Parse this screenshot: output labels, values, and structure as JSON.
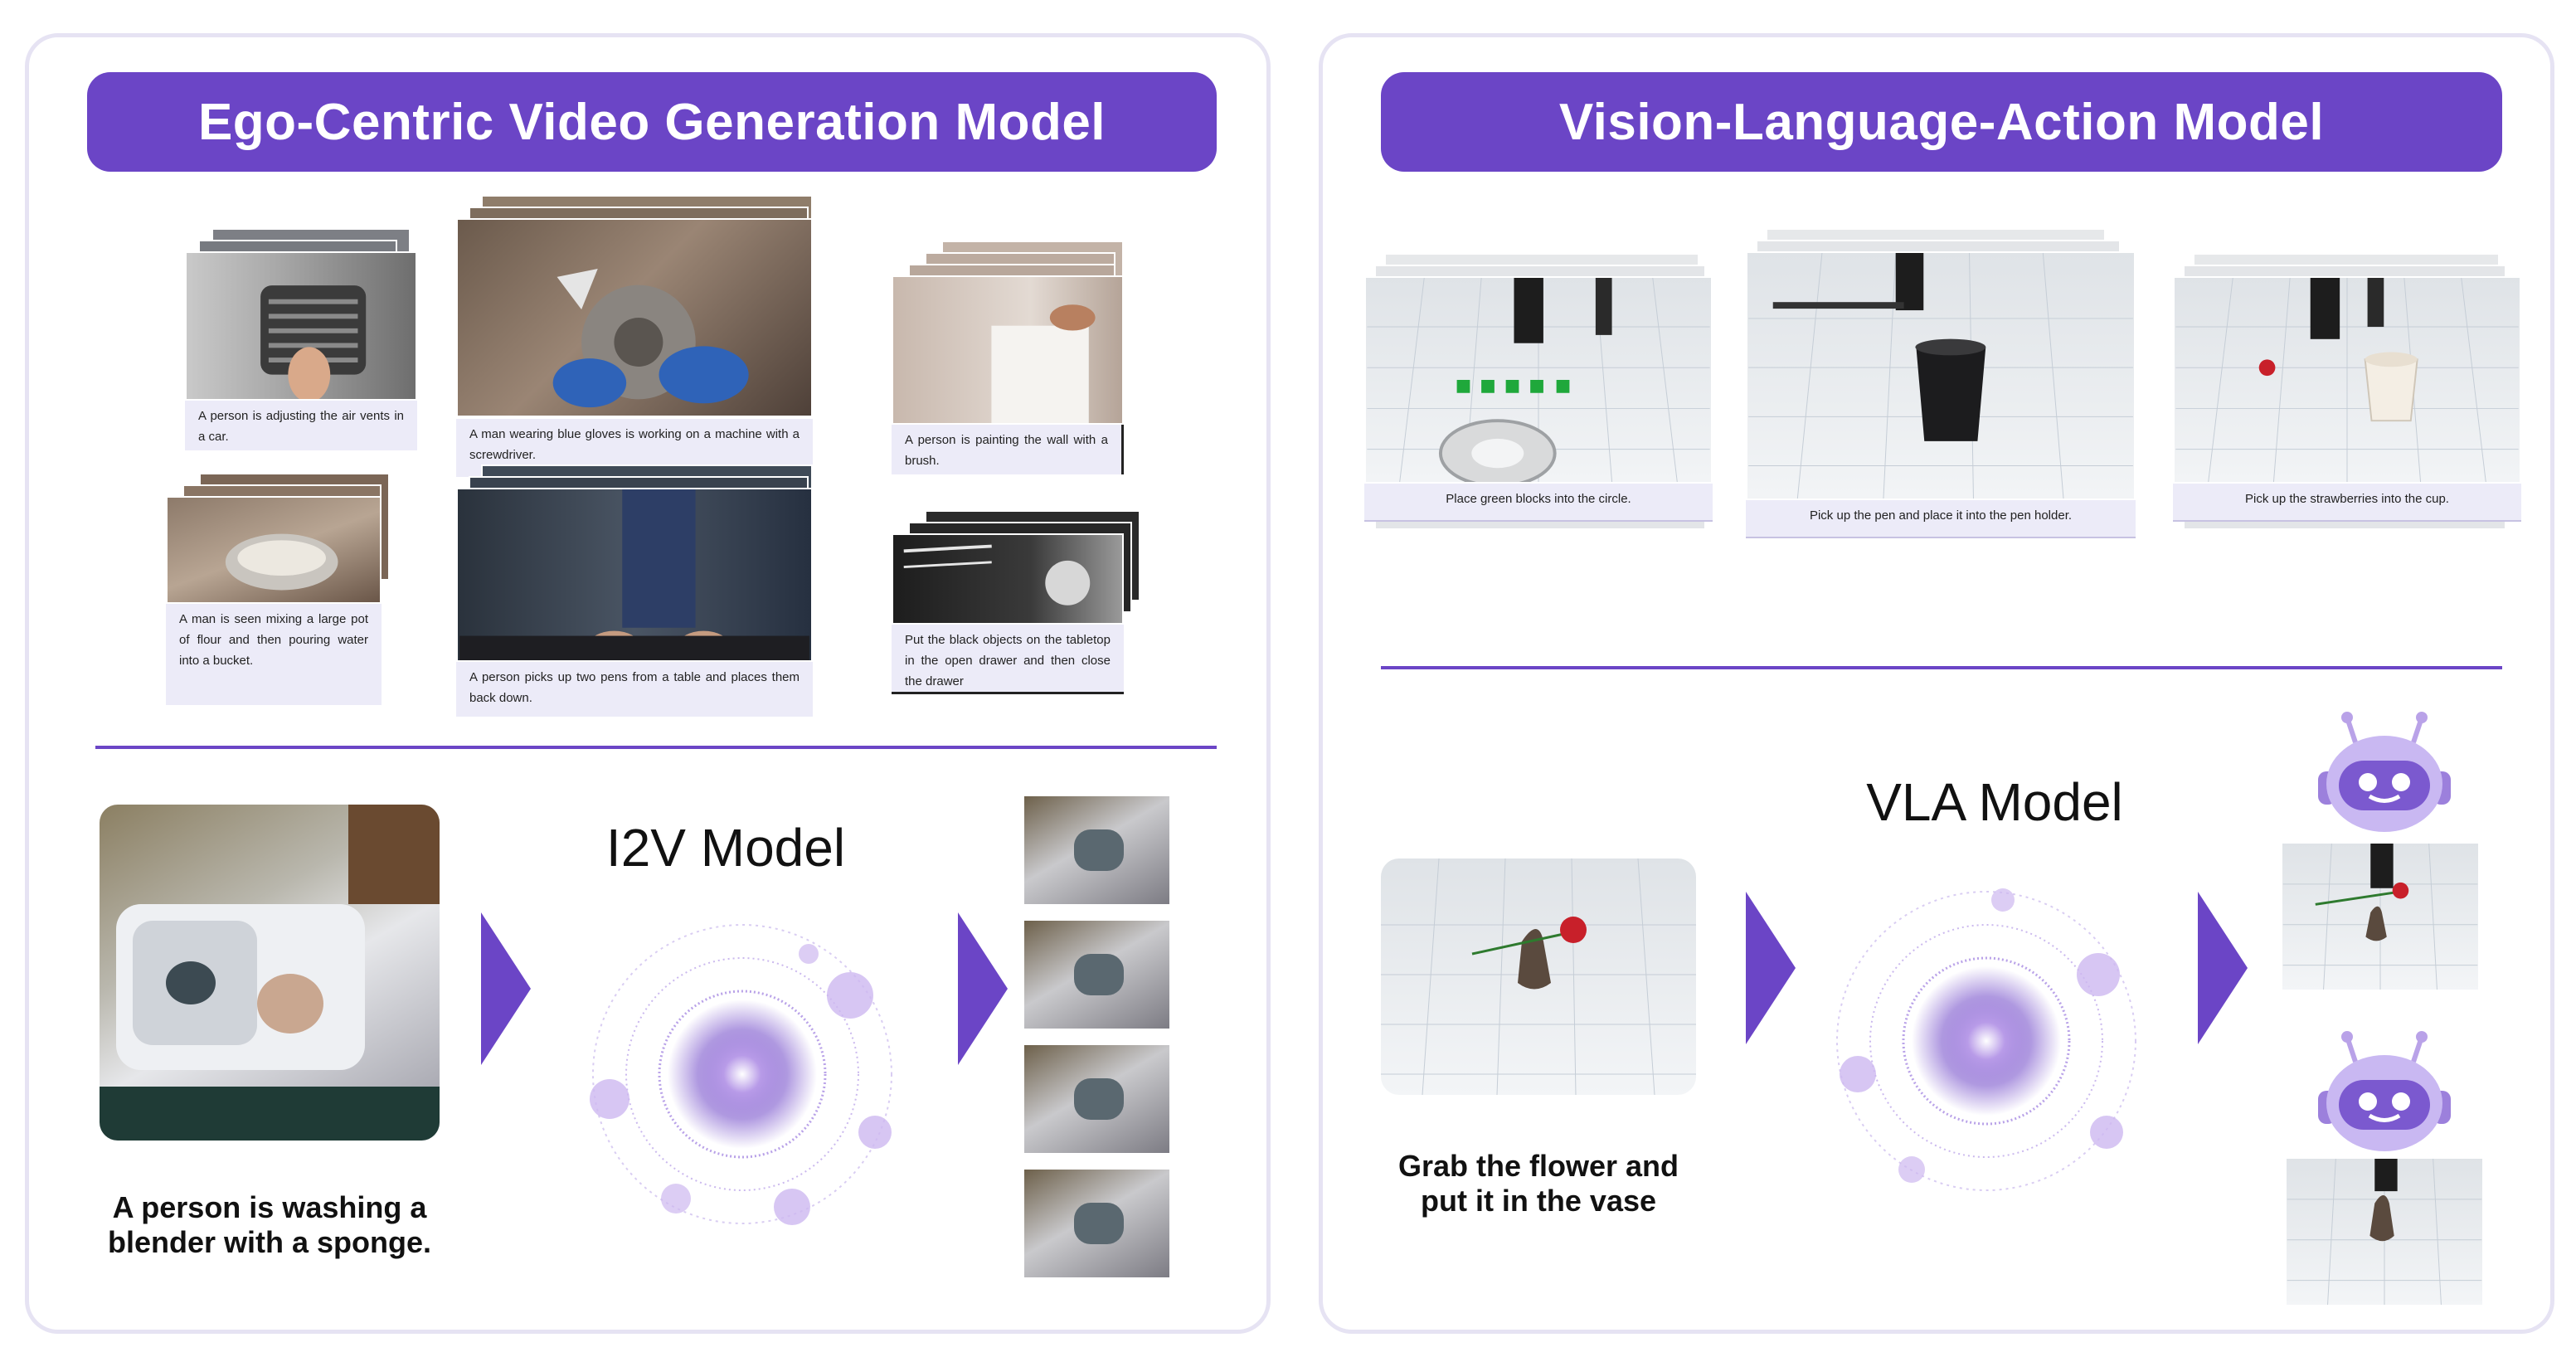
{
  "left_panel": {
    "title": "Ego-Centric Video Generation Model",
    "clips": [
      {
        "caption": "A person is adjusting the air vents in a car."
      },
      {
        "caption": "A man wearing blue gloves is working on a machine with a screwdriver."
      },
      {
        "caption": "A person is painting the wall with a brush."
      },
      {
        "caption": "A man is seen mixing a large pot of flour and then pouring water into a bucket."
      },
      {
        "caption": "A person picks up two pens from a table and places them back down."
      },
      {
        "caption": "Put the black objects on the tabletop in the open drawer and then close the drawer"
      }
    ],
    "model_label": "I2V Model",
    "input_prompt": "A person is washing a blender with a sponge."
  },
  "right_panel": {
    "title": "Vision-Language-Action Model",
    "tasks": [
      {
        "caption": "Place green blocks into the circle."
      },
      {
        "caption": "Pick up the pen and place it into the pen holder."
      },
      {
        "caption": "Pick up the strawberries into the cup."
      }
    ],
    "model_label": "VLA Model",
    "input_prompt": "Grab the flower and put it in the vase"
  },
  "colors": {
    "accent": "#6b45c6",
    "caption_bg": "#ecebf8",
    "panel_border": "#e6e3f3"
  }
}
